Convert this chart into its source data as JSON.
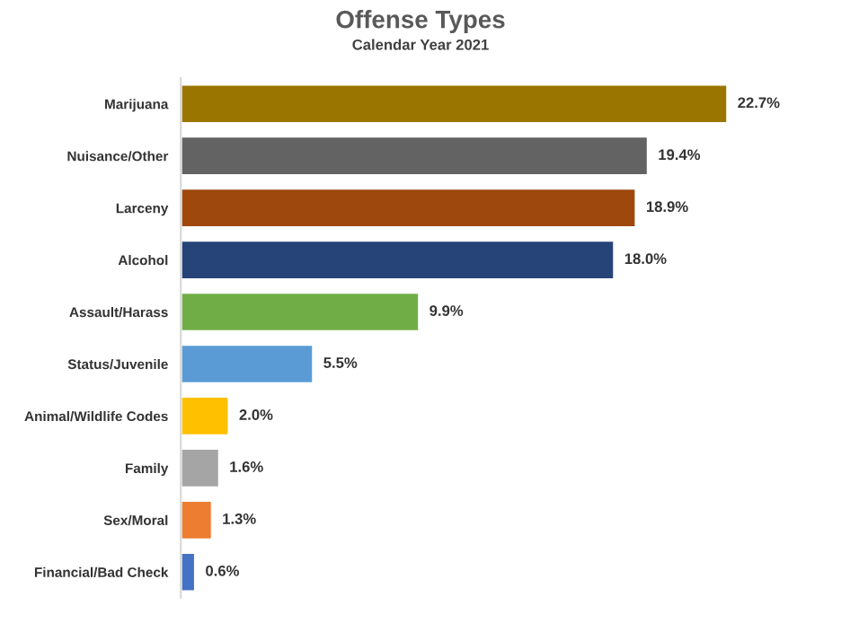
{
  "chart_data": {
    "type": "bar",
    "orientation": "horizontal",
    "title": "Offense Types",
    "subtitle": "Calendar Year 2021",
    "categories": [
      "Marijuana",
      "Nuisance/Other",
      "Larceny",
      "Alcohol",
      "Assault/Harass",
      "Status/Juvenile",
      "Animal/Wildlife Codes",
      "Family",
      "Sex/Moral",
      "Financial/Bad Check"
    ],
    "values": [
      22.7,
      19.4,
      18.9,
      18.0,
      9.9,
      5.5,
      2.0,
      1.6,
      1.3,
      0.6
    ],
    "value_labels": [
      "22.7%",
      "19.4%",
      "18.9%",
      "18.0%",
      "9.9%",
      "5.5%",
      "2.0%",
      "1.6%",
      "1.3%",
      "0.6%"
    ],
    "colors": [
      "#9a7600",
      "#636363",
      "#9e480e",
      "#264478",
      "#70ad47",
      "#5b9bd5",
      "#ffc000",
      "#a5a5a5",
      "#ed7d31",
      "#4472c4"
    ],
    "grid": false,
    "legend": false
  }
}
